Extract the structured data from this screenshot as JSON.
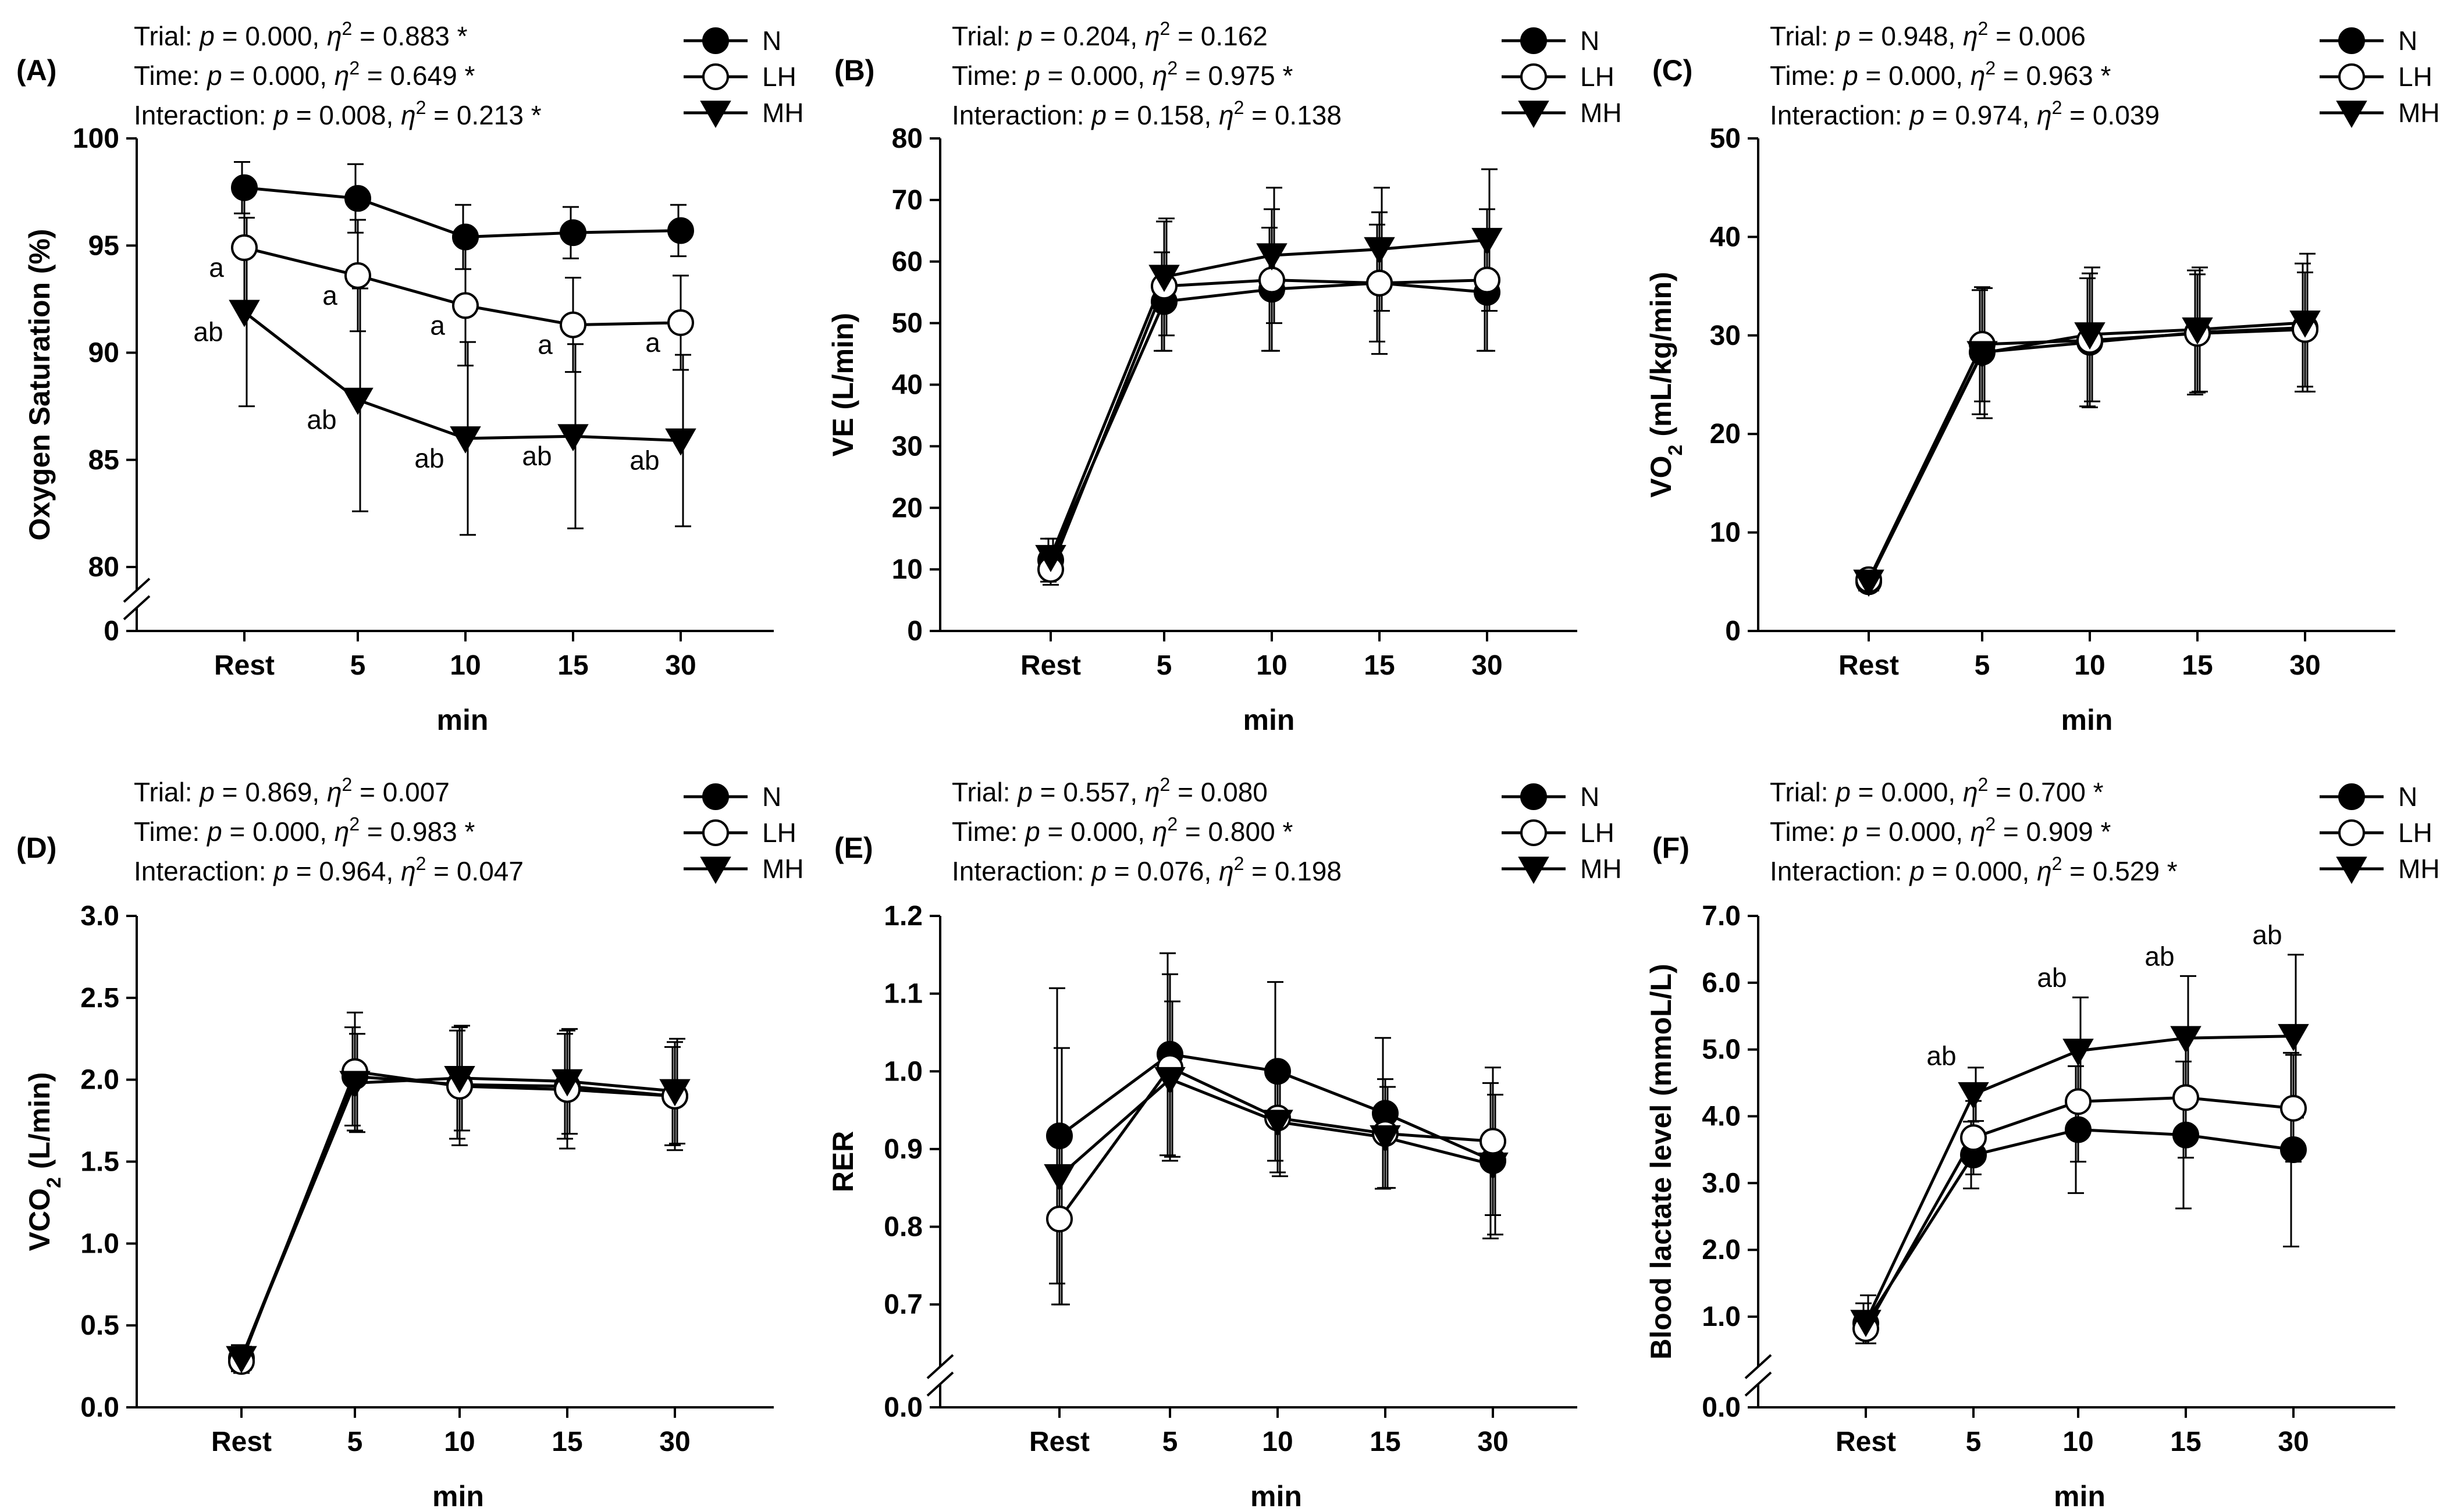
{
  "figure": {
    "legend": [
      {
        "key": "N",
        "label": "N",
        "marker": "filled-circle"
      },
      {
        "key": "LH",
        "label": "LH",
        "marker": "open-circle"
      },
      {
        "key": "MH",
        "label": "MH",
        "marker": "filled-triangle-down"
      }
    ],
    "colors": {
      "line": "#000000",
      "open_fill": "#ffffff",
      "filled": "#000000"
    }
  },
  "chart_data": [
    {
      "id": "A",
      "panel_label": "(A)",
      "type": "line",
      "stats": [
        {
          "name": "Trial",
          "p": "0.000",
          "eta": "0.883",
          "sig": "*"
        },
        {
          "name": "Time",
          "p": "0.000",
          "eta": "0.649",
          "sig": "*"
        },
        {
          "name": "Interaction",
          "p": "0.008",
          "eta": "0.213",
          "sig": "*"
        }
      ],
      "ylabel": "Oxygen Saturation (%)",
      "xlabel": "min",
      "categories": [
        "Rest",
        "5",
        "10",
        "15",
        "30"
      ],
      "ylim": [
        80,
        100
      ],
      "yticks": [
        80,
        85,
        90,
        95,
        100
      ],
      "ybreak_zero": "0",
      "series": [
        {
          "name": "N",
          "values": [
            97.7,
            97.2,
            95.4,
            95.6,
            95.7
          ],
          "errors": [
            1.2,
            1.6,
            1.5,
            1.2,
            1.2
          ]
        },
        {
          "name": "LH",
          "values": [
            94.9,
            93.6,
            92.2,
            91.3,
            91.4
          ],
          "errors": [
            2.5,
            2.6,
            2.8,
            2.2,
            2.2
          ]
        },
        {
          "name": "MH",
          "values": [
            91.9,
            87.8,
            86.0,
            86.1,
            85.9
          ],
          "errors": [
            4.4,
            5.2,
            4.5,
            4.3,
            4.0
          ]
        }
      ],
      "annotations": [
        {
          "series": "LH",
          "index": 0,
          "text": "a"
        },
        {
          "series": "LH",
          "index": 1,
          "text": "a"
        },
        {
          "series": "LH",
          "index": 2,
          "text": "a"
        },
        {
          "series": "LH",
          "index": 3,
          "text": "a"
        },
        {
          "series": "LH",
          "index": 4,
          "text": "a"
        },
        {
          "series": "MH",
          "index": 0,
          "text": "ab"
        },
        {
          "series": "MH",
          "index": 1,
          "text": "ab"
        },
        {
          "series": "MH",
          "index": 2,
          "text": "ab"
        },
        {
          "series": "MH",
          "index": 3,
          "text": "ab"
        },
        {
          "series": "MH",
          "index": 4,
          "text": "ab"
        }
      ]
    },
    {
      "id": "B",
      "panel_label": "(B)",
      "type": "line",
      "stats": [
        {
          "name": "Trial",
          "p": "0.204",
          "eta": "0.162",
          "sig": ""
        },
        {
          "name": "Time",
          "p": "0.000",
          "eta": "0.975",
          "sig": "*"
        },
        {
          "name": "Interaction",
          "p": "0.158",
          "eta": "0.138",
          "sig": ""
        }
      ],
      "ylabel": "VE (L/min)",
      "xlabel": "min",
      "categories": [
        "Rest",
        "5",
        "10",
        "15",
        "30"
      ],
      "ylim": [
        0,
        80
      ],
      "yticks": [
        0,
        10,
        20,
        30,
        40,
        50,
        60,
        70,
        80
      ],
      "series": [
        {
          "name": "N",
          "values": [
            11.5,
            53.5,
            55.5,
            56.5,
            55.0
          ],
          "errors": [
            3.5,
            8.0,
            10.0,
            9.5,
            9.5
          ]
        },
        {
          "name": "LH",
          "values": [
            10.0,
            56.0,
            57.0,
            56.5,
            57.0
          ],
          "errors": [
            2.5,
            10.5,
            11.5,
            11.5,
            11.5
          ]
        },
        {
          "name": "MH",
          "values": [
            12.0,
            57.5,
            61.0,
            62.0,
            63.5
          ],
          "errors": [
            3.0,
            9.5,
            11.0,
            10.0,
            11.5
          ]
        }
      ]
    },
    {
      "id": "C",
      "panel_label": "(C)",
      "type": "line",
      "stats": [
        {
          "name": "Trial",
          "p": "0.948",
          "eta": "0.006",
          "sig": ""
        },
        {
          "name": "Time",
          "p": "0.000",
          "eta": "0.963",
          "sig": "*"
        },
        {
          "name": "Interaction",
          "p": "0.974",
          "eta": "0.039",
          "sig": ""
        }
      ],
      "ylabel": "VO",
      "ylabel_sub": "2",
      "ylabel_rest": " (mL/kg/min)",
      "xlabel": "min",
      "categories": [
        "Rest",
        "5",
        "10",
        "15",
        "30"
      ],
      "ylim": [
        0,
        50
      ],
      "yticks": [
        0,
        10,
        20,
        30,
        40,
        50
      ],
      "series": [
        {
          "name": "N",
          "values": [
            5.0,
            28.3,
            29.3,
            30.3,
            30.8
          ],
          "errors": [
            0.9,
            6.3,
            6.5,
            6.3,
            6.5
          ]
        },
        {
          "name": "LH",
          "values": [
            5.2,
            29.1,
            29.5,
            30.2,
            30.6
          ],
          "errors": [
            0.9,
            5.8,
            6.8,
            6.0,
            5.8
          ]
        },
        {
          "name": "MH",
          "values": [
            5.0,
            28.2,
            30.1,
            30.6,
            31.3
          ],
          "errors": [
            0.9,
            6.6,
            6.8,
            6.3,
            7.0
          ]
        }
      ]
    },
    {
      "id": "D",
      "panel_label": "(D)",
      "type": "line",
      "stats": [
        {
          "name": "Trial",
          "p": "0.869",
          "eta": "0.007",
          "sig": ""
        },
        {
          "name": "Time",
          "p": "0.000",
          "eta": "0.983",
          "sig": "*"
        },
        {
          "name": "Interaction",
          "p": "0.964",
          "eta": "0.047",
          "sig": ""
        }
      ],
      "ylabel": "VCO",
      "ylabel_sub": "2",
      "ylabel_rest": " (L/min)",
      "xlabel": "min",
      "categories": [
        "Rest",
        "5",
        "10",
        "15",
        "30"
      ],
      "ylim": [
        0,
        3.0
      ],
      "yticks": [
        "0.0",
        "0.5",
        "1.0",
        "1.5",
        "2.0",
        "2.5",
        "3.0"
      ],
      "series": [
        {
          "name": "N",
          "values": [
            0.3,
            2.02,
            1.97,
            1.96,
            1.9
          ],
          "errors": [
            0.08,
            0.3,
            0.33,
            0.32,
            0.3
          ]
        },
        {
          "name": "LH",
          "values": [
            0.28,
            2.05,
            1.96,
            1.94,
            1.9
          ],
          "errors": [
            0.07,
            0.36,
            0.36,
            0.36,
            0.33
          ]
        },
        {
          "name": "MH",
          "values": [
            0.3,
            1.98,
            2.01,
            1.99,
            1.93
          ],
          "errors": [
            0.07,
            0.3,
            0.32,
            0.32,
            0.32
          ]
        }
      ]
    },
    {
      "id": "E",
      "panel_label": "(E)",
      "type": "line",
      "stats": [
        {
          "name": "Trial",
          "p": "0.557",
          "eta": "0.080",
          "sig": ""
        },
        {
          "name": "Time",
          "p": "0.000",
          "eta": "0.800",
          "sig": "*"
        },
        {
          "name": "Interaction",
          "p": "0.076",
          "eta": "0.198",
          "sig": ""
        }
      ],
      "ylabel": "RER",
      "xlabel": "min",
      "categories": [
        "Rest",
        "5",
        "10",
        "15",
        "30"
      ],
      "ylim": [
        0.65,
        1.2
      ],
      "yticks": [
        "0.7",
        "0.8",
        "0.9",
        "1.0",
        "1.1",
        "1.2"
      ],
      "ybreak_zero": "0.0",
      "series": [
        {
          "name": "N",
          "values": [
            0.917,
            1.022,
            1.0,
            0.946,
            0.885
          ],
          "errors": [
            0.19,
            0.13,
            0.115,
            0.097,
            0.1
          ]
        },
        {
          "name": "LH",
          "values": [
            0.81,
            1.005,
            0.94,
            0.92,
            0.91
          ],
          "errors": [
            0.11,
            0.12,
            0.07,
            0.07,
            0.095
          ]
        },
        {
          "name": "MH",
          "values": [
            0.865,
            0.99,
            0.935,
            0.915,
            0.88
          ],
          "errors": [
            0.165,
            0.1,
            0.07,
            0.065,
            0.09
          ]
        }
      ]
    },
    {
      "id": "F",
      "panel_label": "(F)",
      "type": "line",
      "stats": [
        {
          "name": "Trial",
          "p": "0.000",
          "eta": "0.700",
          "sig": "*"
        },
        {
          "name": "Time",
          "p": "0.000",
          "eta": "0.909",
          "sig": "*"
        },
        {
          "name": "Interaction",
          "p": "0.000",
          "eta": "0.529",
          "sig": "*"
        }
      ],
      "ylabel": "Blood lactate level (mmoL/L)",
      "xlabel": "min",
      "categories": [
        "Rest",
        "5",
        "10",
        "15",
        "30"
      ],
      "ylim": [
        0.6,
        7.0
      ],
      "yticks": [
        "1.0",
        "2.0",
        "3.0",
        "4.0",
        "5.0",
        "6.0",
        "7.0"
      ],
      "ybreak_zero": "0.0",
      "series": [
        {
          "name": "N",
          "values": [
            0.9,
            3.42,
            3.8,
            3.72,
            3.5
          ],
          "errors": [
            0.3,
            0.5,
            0.95,
            1.1,
            1.45
          ]
        },
        {
          "name": "LH",
          "values": [
            0.82,
            3.68,
            4.22,
            4.28,
            4.12
          ],
          "errors": [
            0.25,
            0.55,
            0.9,
            0.9,
            0.8
          ]
        },
        {
          "name": "MH",
          "values": [
            0.92,
            4.33,
            4.98,
            5.17,
            5.2
          ],
          "errors": [
            0.4,
            0.4,
            0.8,
            0.93,
            1.22
          ]
        }
      ],
      "annotations": [
        {
          "series": "MH",
          "index": 1,
          "text": "ab"
        },
        {
          "series": "MH",
          "index": 2,
          "text": "ab"
        },
        {
          "series": "MH",
          "index": 3,
          "text": "ab"
        },
        {
          "series": "MH",
          "index": 4,
          "text": "ab"
        }
      ]
    }
  ]
}
